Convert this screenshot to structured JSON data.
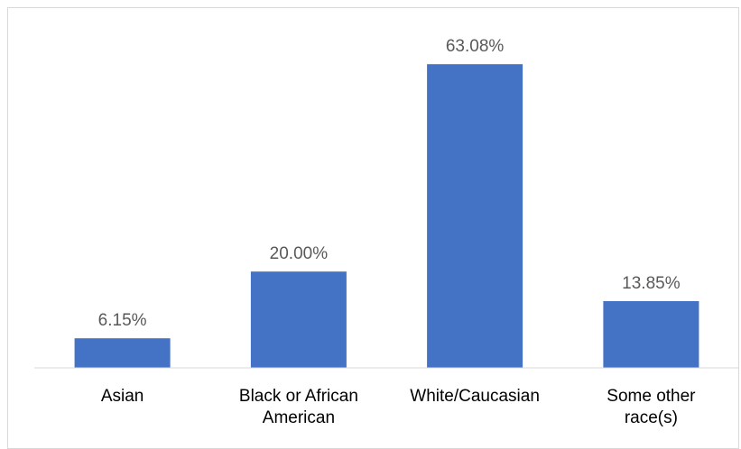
{
  "chart_data": {
    "type": "bar",
    "categories": [
      [
        "Asian"
      ],
      [
        "Black or African",
        "American"
      ],
      [
        "White/Caucasian"
      ],
      [
        "Some other",
        "race(s)"
      ]
    ],
    "values": [
      6.15,
      20.0,
      63.08,
      13.85
    ],
    "data_labels": [
      "6.15%",
      "20.00%",
      "63.08%",
      "13.85%"
    ],
    "title": "",
    "xlabel": "",
    "ylabel": "",
    "ylim": [
      0,
      70
    ],
    "grid": false,
    "legend": "none",
    "bar_color": "#4472c4",
    "axis_color": "#d9d9d9",
    "label_color": "#595959"
  }
}
